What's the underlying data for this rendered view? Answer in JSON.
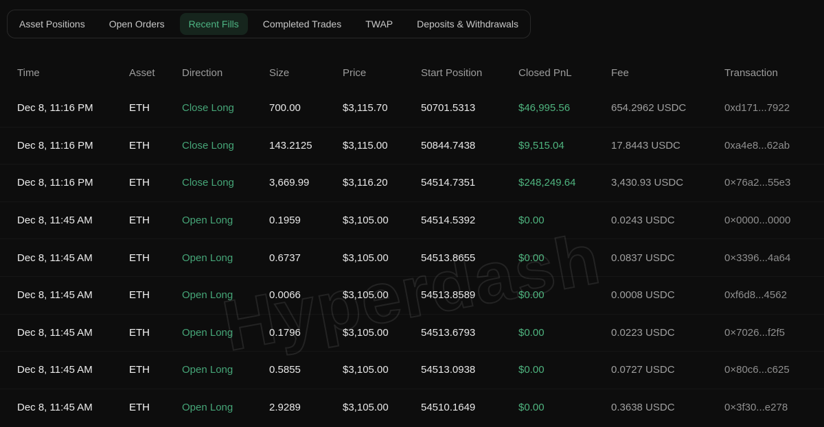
{
  "tabs": {
    "items": [
      {
        "label": "Asset Positions",
        "active": false
      },
      {
        "label": "Open Orders",
        "active": false
      },
      {
        "label": "Recent Fills",
        "active": true
      },
      {
        "label": "Completed Trades",
        "active": false
      },
      {
        "label": "TWAP",
        "active": false
      },
      {
        "label": "Deposits & Withdrawals",
        "active": false
      }
    ]
  },
  "watermark": "Hyperdash",
  "colors": {
    "background": "#0d0d0d",
    "accent_green_pnl": "#4fb47f",
    "accent_green_direction": "#46a678",
    "active_tab_bg": "#16251d",
    "active_tab_text": "#4db584",
    "muted_text": "#9c9c9c"
  },
  "table": {
    "columns": [
      "Time",
      "Asset",
      "Direction",
      "Size",
      "Price",
      "Start Position",
      "Closed PnL",
      "Fee",
      "Transaction"
    ],
    "rows": [
      {
        "time": "Dec 8, 11:16 PM",
        "asset": "ETH",
        "direction": "Close Long",
        "size": "700.00",
        "price": "$3,115.70",
        "start_position": "50701.5313",
        "closed_pnl": "$46,995.56",
        "fee": "654.2962 USDC",
        "transaction": "0xd171...7922"
      },
      {
        "time": "Dec 8, 11:16 PM",
        "asset": "ETH",
        "direction": "Close Long",
        "size": "143.2125",
        "price": "$3,115.00",
        "start_position": "50844.7438",
        "closed_pnl": "$9,515.04",
        "fee": "17.8443 USDC",
        "transaction": "0xa4e8...62ab"
      },
      {
        "time": "Dec 8, 11:16 PM",
        "asset": "ETH",
        "direction": "Close Long",
        "size": "3,669.99",
        "price": "$3,116.20",
        "start_position": "54514.7351",
        "closed_pnl": "$248,249.64",
        "fee": "3,430.93 USDC",
        "transaction": "0×76a2...55e3"
      },
      {
        "time": "Dec 8, 11:45 AM",
        "asset": "ETH",
        "direction": "Open Long",
        "size": "0.1959",
        "price": "$3,105.00",
        "start_position": "54514.5392",
        "closed_pnl": "$0.00",
        "fee": "0.0243 USDC",
        "transaction": "0×0000...0000"
      },
      {
        "time": "Dec 8, 11:45 AM",
        "asset": "ETH",
        "direction": "Open Long",
        "size": "0.6737",
        "price": "$3,105.00",
        "start_position": "54513.8655",
        "closed_pnl": "$0.00",
        "fee": "0.0837 USDC",
        "transaction": "0×3396...4a64"
      },
      {
        "time": "Dec 8, 11:45 AM",
        "asset": "ETH",
        "direction": "Open Long",
        "size": "0.0066",
        "price": "$3,105.00",
        "start_position": "54513.8589",
        "closed_pnl": "$0.00",
        "fee": "0.0008 USDC",
        "transaction": "0xf6d8...4562"
      },
      {
        "time": "Dec 8, 11:45 AM",
        "asset": "ETH",
        "direction": "Open Long",
        "size": "0.1796",
        "price": "$3,105.00",
        "start_position": "54513.6793",
        "closed_pnl": "$0.00",
        "fee": "0.0223 USDC",
        "transaction": "0×7026...f2f5"
      },
      {
        "time": "Dec 8, 11:45 AM",
        "asset": "ETH",
        "direction": "Open Long",
        "size": "0.5855",
        "price": "$3,105.00",
        "start_position": "54513.0938",
        "closed_pnl": "$0.00",
        "fee": "0.0727 USDC",
        "transaction": "0×80c6...c625"
      },
      {
        "time": "Dec 8, 11:45 AM",
        "asset": "ETH",
        "direction": "Open Long",
        "size": "2.9289",
        "price": "$3,105.00",
        "start_position": "54510.1649",
        "closed_pnl": "$0.00",
        "fee": "0.3638 USDC",
        "transaction": "0×3f30...e278"
      }
    ]
  }
}
